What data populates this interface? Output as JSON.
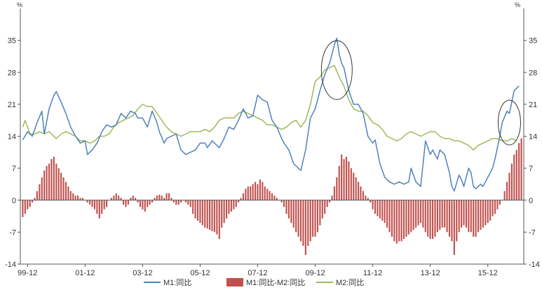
{
  "chart_data": {
    "type": "bar+line",
    "unit_left": "%",
    "unit_right": "%",
    "ylim": [
      -14,
      42
    ],
    "yticks": [
      -14,
      -7,
      0,
      7,
      14,
      21,
      28,
      35
    ],
    "x_ticks": [
      "99-12",
      "01-12",
      "03-12",
      "05-12",
      "07-12",
      "09-12",
      "11-12",
      "13-12",
      "15-12"
    ],
    "x_tick_positions": [
      0,
      24,
      48,
      72,
      96,
      120,
      144,
      168,
      192
    ],
    "x_range": [
      -3,
      207
    ],
    "grid": false,
    "legend_position": "bottom",
    "colors": {
      "m1": "#4f81bd",
      "diff": "#c0504d",
      "m2": "#9bbb59",
      "axis": "#555555",
      "ellipse": "#333333"
    },
    "series": [
      {
        "name": "M1:同比",
        "key": "m1",
        "type": "line",
        "points": [
          [
            -2,
            13.2
          ],
          [
            0,
            15
          ],
          [
            2,
            14
          ],
          [
            4,
            17
          ],
          [
            6,
            19.5
          ],
          [
            7,
            14.5
          ],
          [
            9,
            20
          ],
          [
            11,
            23
          ],
          [
            12,
            23.8
          ],
          [
            14,
            21.5
          ],
          [
            16,
            19
          ],
          [
            18,
            16
          ],
          [
            20,
            14
          ],
          [
            22,
            12.5
          ],
          [
            24,
            13
          ],
          [
            25,
            10
          ],
          [
            27,
            11
          ],
          [
            29,
            12.5
          ],
          [
            31,
            15
          ],
          [
            33,
            16.5
          ],
          [
            35,
            16
          ],
          [
            37,
            16.5
          ],
          [
            39,
            19
          ],
          [
            41,
            18
          ],
          [
            43,
            19.5
          ],
          [
            45,
            19
          ],
          [
            46,
            18
          ],
          [
            48,
            18
          ],
          [
            50,
            16
          ],
          [
            52,
            19.5
          ],
          [
            54,
            17
          ],
          [
            55,
            15
          ],
          [
            57,
            12.5
          ],
          [
            58,
            13.5
          ],
          [
            60,
            14
          ],
          [
            62,
            14.5
          ],
          [
            64,
            11
          ],
          [
            66,
            10
          ],
          [
            68,
            10.5
          ],
          [
            70,
            11
          ],
          [
            72,
            12.5
          ],
          [
            74,
            12.5
          ],
          [
            75,
            11.5
          ],
          [
            77,
            13
          ],
          [
            80,
            11.5
          ],
          [
            82,
            13.5
          ],
          [
            84,
            16
          ],
          [
            86,
            15.5
          ],
          [
            88,
            17.5
          ],
          [
            90,
            20
          ],
          [
            92,
            18
          ],
          [
            94,
            18.5
          ],
          [
            96,
            23
          ],
          [
            98,
            22
          ],
          [
            100,
            21.5
          ],
          [
            102,
            17.5
          ],
          [
            104,
            16
          ],
          [
            106,
            13.5
          ],
          [
            107,
            12.5
          ],
          [
            109,
            11
          ],
          [
            111,
            8
          ],
          [
            113,
            7
          ],
          [
            114,
            6.5
          ],
          [
            116,
            11
          ],
          [
            118,
            18
          ],
          [
            120,
            20
          ],
          [
            122,
            24
          ],
          [
            124,
            27.5
          ],
          [
            126,
            30
          ],
          [
            128,
            34
          ],
          [
            129,
            35.5
          ],
          [
            130,
            32
          ],
          [
            131,
            30
          ],
          [
            132,
            29
          ],
          [
            134,
            24
          ],
          [
            136,
            21
          ],
          [
            138,
            21
          ],
          [
            140,
            19
          ],
          [
            142,
            14
          ],
          [
            144,
            12.5
          ],
          [
            145,
            13.2
          ],
          [
            147,
            8
          ],
          [
            149,
            5
          ],
          [
            151,
            4
          ],
          [
            153,
            3.5
          ],
          [
            155,
            4
          ],
          [
            157,
            3.5
          ],
          [
            159,
            4
          ],
          [
            160,
            7
          ],
          [
            162,
            4
          ],
          [
            164,
            3
          ],
          [
            166,
            13
          ],
          [
            168,
            10
          ],
          [
            169,
            11
          ],
          [
            171,
            9
          ],
          [
            172,
            11
          ],
          [
            174,
            10
          ],
          [
            176,
            6
          ],
          [
            177,
            3
          ],
          [
            178,
            2
          ],
          [
            180,
            5.5
          ],
          [
            181,
            4.5
          ],
          [
            182,
            3
          ],
          [
            184,
            7
          ],
          [
            185,
            6
          ],
          [
            186,
            3
          ],
          [
            187,
            2.5
          ],
          [
            189,
            3.5
          ],
          [
            190,
            3
          ],
          [
            192,
            5
          ],
          [
            194,
            7
          ],
          [
            195,
            9
          ],
          [
            197,
            14
          ],
          [
            198,
            17
          ],
          [
            200,
            19.5
          ],
          [
            201,
            19
          ],
          [
            203,
            24
          ],
          [
            205,
            25
          ]
        ]
      },
      {
        "name": "M1:同比-M2:同比",
        "key": "diff",
        "type": "bar",
        "x_start": -2,
        "x_step": 1,
        "values": [
          -3.7,
          -3,
          -2,
          -1.5,
          -0.5,
          0.5,
          2,
          3.5,
          5,
          6.5,
          7.5,
          8,
          9,
          9.5,
          8,
          7,
          6,
          5,
          4,
          3,
          2,
          1.5,
          1,
          1,
          0.5,
          0.5,
          0,
          -0.5,
          -1,
          -1.5,
          -2,
          -3,
          -4,
          -3,
          -2,
          -1.5,
          0,
          0.5,
          1,
          1.5,
          1,
          0.5,
          -1,
          -1.5,
          -1,
          0.5,
          1,
          0.5,
          -0.5,
          -1.5,
          -2,
          -2.5,
          -1.5,
          -1,
          -0.5,
          0.5,
          1,
          1.2,
          1,
          0.5,
          1.5,
          1.5,
          0.5,
          -0.5,
          -1,
          -1,
          -0.5,
          0,
          -0.5,
          -1,
          -1.5,
          -3,
          -4,
          -4.5,
          -5,
          -5.5,
          -6,
          -6.2,
          -6.5,
          -6.8,
          -7,
          -7.5,
          -8.5,
          -6,
          -5,
          -4,
          -3,
          -2.5,
          -2,
          -1.5,
          -0.5,
          0.5,
          1.5,
          2.5,
          3,
          3,
          3.5,
          4,
          3.5,
          4.5,
          4,
          3,
          2.5,
          2,
          1.5,
          1,
          0.5,
          0,
          -0.5,
          -1.5,
          -3,
          -4,
          -5,
          -6,
          -7,
          -8,
          -9,
          -10,
          -12,
          -10,
          -9,
          -8,
          -8,
          -7,
          -5.5,
          -4,
          -3,
          -1.5,
          -0.5,
          1,
          3,
          5,
          7.5,
          10,
          9,
          9.5,
          8.5,
          7,
          6,
          5,
          4,
          3,
          2,
          1,
          0.5,
          -0.5,
          -2,
          -3,
          -3.5,
          -4,
          -4.5,
          -5,
          -6,
          -7,
          -8,
          -9,
          -9.5,
          -9,
          -9,
          -8.5,
          -8,
          -7.5,
          -7,
          -6.5,
          -6,
          -5.5,
          -5,
          -6,
          -7,
          -8,
          -8.5,
          -8.5,
          -8,
          -7,
          -6.5,
          -6,
          -6,
          -7,
          -8,
          -9,
          -12,
          -9,
          -7,
          -6,
          -5.5,
          -6,
          -7,
          -7,
          -8,
          -8,
          -7,
          -6.5,
          -6,
          -5.5,
          -5,
          -4.5,
          -3.5,
          -3,
          -2,
          -1,
          0,
          2,
          4,
          6,
          8,
          10,
          11,
          12.5,
          13.5
        ]
      },
      {
        "name": "M2:同比",
        "key": "m2",
        "type": "line",
        "points": [
          [
            -2,
            16
          ],
          [
            -1,
            17.5
          ],
          [
            1,
            14.5
          ],
          [
            3,
            14.5
          ],
          [
            5,
            15
          ],
          [
            7,
            14.5
          ],
          [
            9,
            15
          ],
          [
            12,
            13.5
          ],
          [
            14,
            14.5
          ],
          [
            16,
            15
          ],
          [
            18,
            14.5
          ],
          [
            20,
            14
          ],
          [
            22,
            13
          ],
          [
            24,
            13
          ],
          [
            26,
            12.5
          ],
          [
            28,
            13
          ],
          [
            30,
            14
          ],
          [
            32,
            14
          ],
          [
            34,
            14.5
          ],
          [
            36,
            16
          ],
          [
            38,
            17
          ],
          [
            40,
            17.5
          ],
          [
            42,
            18
          ],
          [
            44,
            18.5
          ],
          [
            46,
            20
          ],
          [
            48,
            21
          ],
          [
            50,
            20.5
          ],
          [
            52,
            20.5
          ],
          [
            54,
            19
          ],
          [
            56,
            17.5
          ],
          [
            58,
            16
          ],
          [
            60,
            15
          ],
          [
            62,
            14.5
          ],
          [
            64,
            14
          ],
          [
            66,
            14.5
          ],
          [
            68,
            15
          ],
          [
            70,
            15
          ],
          [
            72,
            15
          ],
          [
            74,
            15.5
          ],
          [
            76,
            15
          ],
          [
            78,
            16
          ],
          [
            80,
            17.5
          ],
          [
            82,
            18
          ],
          [
            84,
            18
          ],
          [
            86,
            18
          ],
          [
            88,
            19
          ],
          [
            90,
            19.5
          ],
          [
            92,
            19
          ],
          [
            94,
            18.5
          ],
          [
            96,
            18
          ],
          [
            98,
            17.5
          ],
          [
            100,
            16.5
          ],
          [
            102,
            16.5
          ],
          [
            104,
            16
          ],
          [
            106,
            15.5
          ],
          [
            108,
            16
          ],
          [
            110,
            17
          ],
          [
            112,
            17.5
          ],
          [
            114,
            16
          ],
          [
            116,
            17.5
          ],
          [
            118,
            21
          ],
          [
            120,
            26
          ],
          [
            122,
            27
          ],
          [
            124,
            28.5
          ],
          [
            126,
            29
          ],
          [
            128,
            29.5
          ],
          [
            130,
            27
          ],
          [
            132,
            25
          ],
          [
            134,
            22
          ],
          [
            136,
            20
          ],
          [
            138,
            19.5
          ],
          [
            140,
            19.5
          ],
          [
            142,
            18.5
          ],
          [
            144,
            17
          ],
          [
            146,
            16.5
          ],
          [
            148,
            15.5
          ],
          [
            150,
            14
          ],
          [
            152,
            13.5
          ],
          [
            154,
            13
          ],
          [
            156,
            13.5
          ],
          [
            158,
            14.5
          ],
          [
            160,
            15
          ],
          [
            162,
            14.5
          ],
          [
            164,
            14
          ],
          [
            166,
            14.5
          ],
          [
            168,
            15
          ],
          [
            170,
            15
          ],
          [
            172,
            14
          ],
          [
            174,
            13.5
          ],
          [
            176,
            13.5
          ],
          [
            178,
            13
          ],
          [
            180,
            13
          ],
          [
            182,
            12.5
          ],
          [
            184,
            12
          ],
          [
            186,
            11
          ],
          [
            188,
            12
          ],
          [
            190,
            12.5
          ],
          [
            192,
            13
          ],
          [
            194,
            13.5
          ],
          [
            196,
            13.5
          ],
          [
            198,
            13
          ],
          [
            200,
            13
          ],
          [
            202,
            13.5
          ],
          [
            204,
            13
          ]
        ]
      }
    ]
  }
}
